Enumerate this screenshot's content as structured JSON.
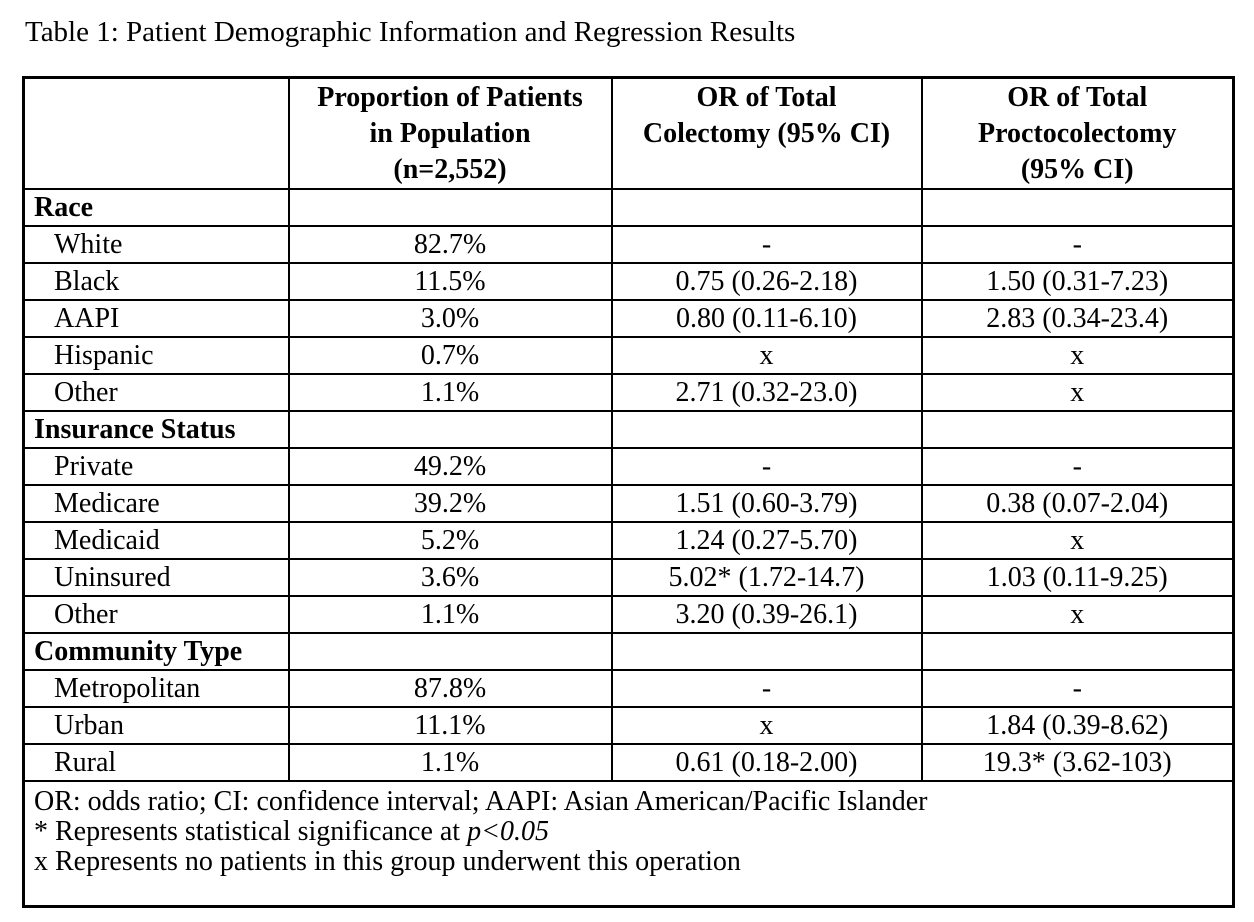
{
  "title": "Table 1: Patient Demographic Information and Regression Results",
  "table": {
    "headers": [
      "",
      "Proportion of Patients\nin Population\n(n=2,552)",
      "OR of Total\nColectomy (95% CI)",
      "OR of Total\nProctocolectomy\n(95% CI)"
    ],
    "sections": [
      {
        "label": "Race",
        "rows": [
          {
            "label": "White",
            "proportion": "82.7%",
            "colectomy_or": "-",
            "proctocolectomy_or": "-"
          },
          {
            "label": "Black",
            "proportion": "11.5%",
            "colectomy_or": "0.75 (0.26-2.18)",
            "proctocolectomy_or": "1.50 (0.31-7.23)"
          },
          {
            "label": "AAPI",
            "proportion": "3.0%",
            "colectomy_or": "0.80 (0.11-6.10)",
            "proctocolectomy_or": "2.83 (0.34-23.4)"
          },
          {
            "label": "Hispanic",
            "proportion": "0.7%",
            "colectomy_or": "x",
            "proctocolectomy_or": "x"
          },
          {
            "label": "Other",
            "proportion": "1.1%",
            "colectomy_or": "2.71 (0.32-23.0)",
            "proctocolectomy_or": "x"
          }
        ]
      },
      {
        "label": "Insurance Status",
        "rows": [
          {
            "label": "Private",
            "proportion": "49.2%",
            "colectomy_or": "-",
            "proctocolectomy_or": "-"
          },
          {
            "label": "Medicare",
            "proportion": "39.2%",
            "colectomy_or": "1.51 (0.60-3.79)",
            "proctocolectomy_or": "0.38 (0.07-2.04)"
          },
          {
            "label": "Medicaid",
            "proportion": "5.2%",
            "colectomy_or": "1.24 (0.27-5.70)",
            "proctocolectomy_or": "x"
          },
          {
            "label": "Uninsured",
            "proportion": "3.6%",
            "colectomy_or": "5.02* (1.72-14.7)",
            "proctocolectomy_or": "1.03 (0.11-9.25)"
          },
          {
            "label": "Other",
            "proportion": "1.1%",
            "colectomy_or": "3.20 (0.39-26.1)",
            "proctocolectomy_or": "x"
          }
        ]
      },
      {
        "label": "Community Type",
        "rows": [
          {
            "label": "Metropolitan",
            "proportion": "87.8%",
            "colectomy_or": "-",
            "proctocolectomy_or": "-"
          },
          {
            "label": "Urban",
            "proportion": "11.1%",
            "colectomy_or": "x",
            "proctocolectomy_or": "1.84 (0.39-8.62)"
          },
          {
            "label": "Rural",
            "proportion": "1.1%",
            "colectomy_or": "0.61 (0.18-2.00)",
            "proctocolectomy_or": "19.3* (3.62-103)"
          }
        ]
      }
    ]
  },
  "footnotes": {
    "abbreviations": "OR: odds ratio; CI: confidence interval; AAPI: Asian American/Pacific Islander",
    "significance_prefix": "* Represents statistical significance at ",
    "significance_value": "p<0.05",
    "no_patients": "x Represents no patients in this group underwent this operation"
  },
  "colors": {
    "background": "#ffffff",
    "text": "#000000",
    "border": "#000000"
  }
}
